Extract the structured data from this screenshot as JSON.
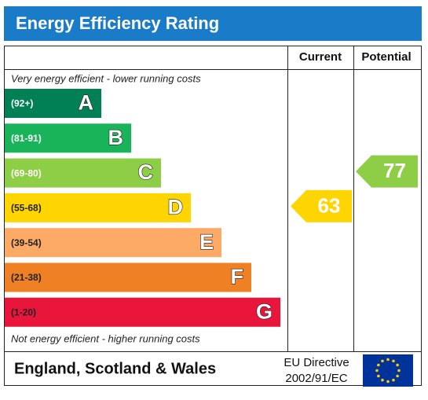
{
  "header": {
    "title": "Energy Efficiency Rating"
  },
  "columns": [
    "Current",
    "Potential"
  ],
  "top_note": "Very energy efficient - lower running costs",
  "bottom_note": "Not energy efficient - higher running costs",
  "bands": [
    {
      "range": "(92+)",
      "letter": "A",
      "color": "#008054"
    },
    {
      "range": "(81-91)",
      "letter": "B",
      "color": "#19b459"
    },
    {
      "range": "(69-80)",
      "letter": "C",
      "color": "#8dce46"
    },
    {
      "range": "(55-68)",
      "letter": "D",
      "color": "#ffd500"
    },
    {
      "range": "(39-54)",
      "letter": "E",
      "color": "#fcaa65"
    },
    {
      "range": "(21-38)",
      "letter": "F",
      "color": "#ef8023"
    },
    {
      "range": "(1-20)",
      "letter": "G",
      "color": "#e9153b"
    }
  ],
  "ratings": [
    {
      "value": 63,
      "band": "D"
    },
    {
      "value": 77,
      "band": "C"
    }
  ],
  "footer": {
    "region": "England, Scotland & Wales",
    "directive": "EU Directive",
    "code": "2002/91/EC"
  }
}
